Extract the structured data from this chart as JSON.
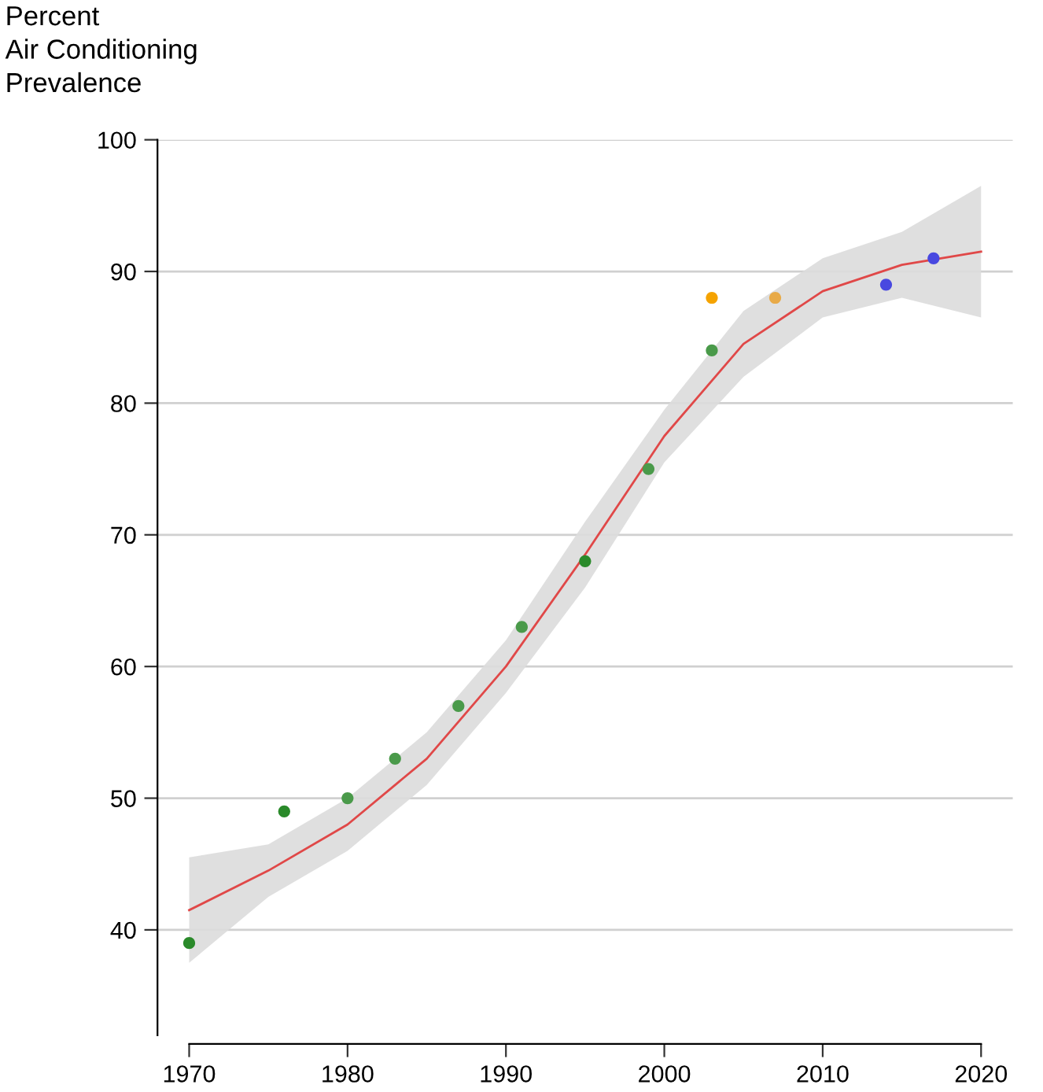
{
  "chart_data": {
    "type": "scatter",
    "ylabel": "Percent\nAir Conditioning\nPrevalence",
    "xlim": [
      1968,
      2022
    ],
    "xticks": [
      1970,
      1980,
      1990,
      2000,
      2010,
      2020
    ],
    "ylim": [
      32,
      100
    ],
    "yticks": [
      40,
      50,
      60,
      70,
      80,
      90,
      100
    ],
    "grid": "y",
    "series": [
      {
        "marker": "circle",
        "x": [
          1970,
          1976,
          1980,
          1983,
          1987,
          1991,
          1995,
          1999,
          2003,
          2003,
          2007,
          2014,
          2017
        ],
        "values": [
          39,
          49,
          50,
          53,
          57,
          63,
          68,
          75,
          84,
          88,
          88,
          89,
          91
        ],
        "colors": [
          "#2a8a2a",
          "#2a8a2a",
          "#4a9a4a",
          "#4a9a4a",
          "#4a9a4a",
          "#4a9a4a",
          "#2a8a2a",
          "#4a9a4a",
          "#4a9a4a",
          "#f5a300",
          "#e8aa48",
          "#4848e0",
          "#4848e0"
        ]
      },
      {
        "type": "line",
        "color": "#e04848",
        "x": [
          1970,
          1975,
          1980,
          1985,
          1990,
          1995,
          2000,
          2005,
          2010,
          2015,
          2020
        ],
        "values": [
          41.5,
          44.5,
          48,
          53,
          60,
          68.5,
          77.5,
          84.5,
          88.5,
          90.5,
          91.5
        ],
        "lower": [
          37.5,
          42.5,
          46,
          51,
          58,
          66,
          75.5,
          82,
          86.5,
          88,
          86.5
        ],
        "upper": [
          45.5,
          46.5,
          50,
          55,
          62,
          71,
          79.5,
          87,
          91,
          93,
          96.5
        ]
      }
    ]
  }
}
